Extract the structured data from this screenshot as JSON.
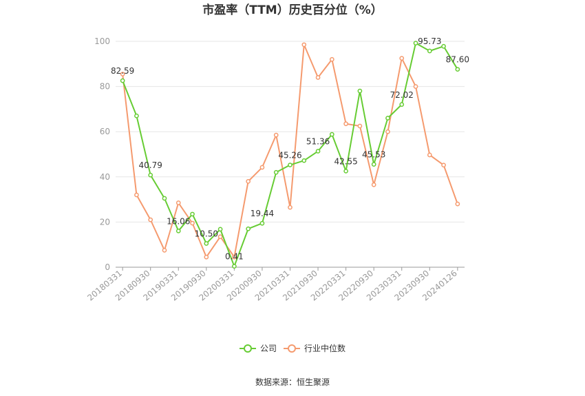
{
  "title": "市盈率（TTM）历史百分位（%）",
  "source": "数据来源：恒生聚源",
  "chart_data": {
    "type": "line",
    "title": "市盈率（TTM）历史百分位（%）",
    "ylim": [
      0,
      100
    ],
    "yticks": [
      "0",
      "20",
      "40",
      "60",
      "80",
      "100"
    ],
    "ytick_values": [
      0,
      20,
      40,
      60,
      80,
      100
    ],
    "grid": true,
    "legend_position": "bottom",
    "x": [
      "20180331",
      "20180630",
      "20180930",
      "20181231",
      "20190331",
      "20190630",
      "20190930",
      "20191231",
      "20200331",
      "20200630",
      "20200930",
      "20201231",
      "20210331",
      "20210630",
      "20210930",
      "20211231",
      "20220331",
      "20220630",
      "20220930",
      "20221231",
      "20230331",
      "20230630",
      "20230930",
      "20231231",
      "20240126"
    ],
    "xtick_labels": [
      "20180331",
      "20180930",
      "20190331",
      "20190930",
      "20200331",
      "20200930",
      "20210331",
      "20210930",
      "20220331",
      "20220930",
      "20230331",
      "20230930",
      "20240126"
    ],
    "xtick_indices": [
      0,
      2,
      4,
      6,
      8,
      10,
      12,
      14,
      16,
      18,
      20,
      22,
      24
    ],
    "series": [
      {
        "name": "公司",
        "color": "#66cc33",
        "values": [
          82.59,
          67,
          40.79,
          30.5,
          16.06,
          23.5,
          10.5,
          16.8,
          0.41,
          17,
          19.44,
          42,
          45.26,
          47.2,
          51.36,
          58.8,
          42.55,
          78,
          45.53,
          66,
          72.02,
          99.2,
          95.73,
          97.8,
          87.6
        ],
        "labels": [
          "82.59",
          null,
          "40.79",
          null,
          "16.06",
          null,
          "10.50",
          null,
          "0.41",
          null,
          "19.44",
          null,
          "45.26",
          null,
          "51.36",
          null,
          "42.55",
          null,
          "45.53",
          null,
          "72.02",
          null,
          "95.73",
          null,
          "87.60"
        ]
      },
      {
        "name": "行业中位数",
        "color": "#f59a6e",
        "values": [
          85.5,
          32,
          21,
          7.5,
          28.5,
          19.5,
          4.5,
          13.5,
          4.5,
          38,
          44.2,
          58.5,
          26.5,
          98.5,
          84,
          92,
          63.5,
          62.5,
          36.5,
          60,
          92.5,
          80,
          49.7,
          45.2,
          28
        ]
      }
    ]
  }
}
